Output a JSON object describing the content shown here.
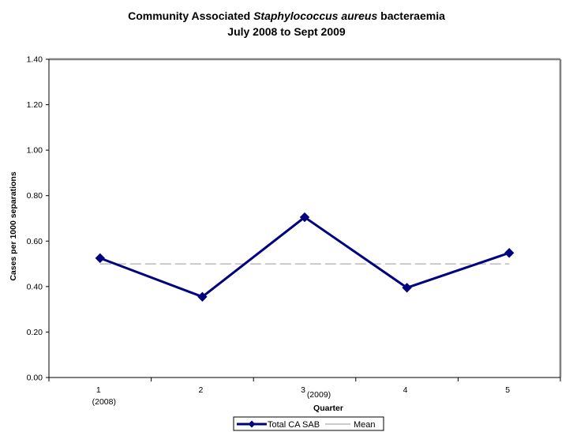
{
  "chart_data": {
    "type": "line",
    "title_line1_prefix": "Community Associated ",
    "title_line1_italic": "Staphylococcus aureus",
    "title_line1_suffix": "  bacteraemia",
    "title_line2": "July 2008 to Sept 2009",
    "xlabel": "Quarter",
    "ylabel": "Cases per 1000 separations",
    "categories": [
      "1",
      "2",
      "3",
      "4",
      "5"
    ],
    "category_sublabels": [
      "(2008)",
      "",
      "(2009)",
      "",
      ""
    ],
    "ylim": [
      0,
      1.4
    ],
    "yticks": [
      "0.00",
      "0.20",
      "0.40",
      "0.60",
      "0.80",
      "1.00",
      "1.20",
      "1.40"
    ],
    "series": [
      {
        "name": "Total CA SAB",
        "values": [
          0.525,
          0.355,
          0.705,
          0.395,
          0.548
        ],
        "color": "#000080",
        "marker": "diamond"
      },
      {
        "name": "Mean",
        "values": [
          0.5,
          0.5,
          0.5,
          0.5,
          0.5
        ],
        "color": "#999999",
        "style": "dashed"
      }
    ],
    "legend_position": "bottom-center",
    "grid": false
  }
}
